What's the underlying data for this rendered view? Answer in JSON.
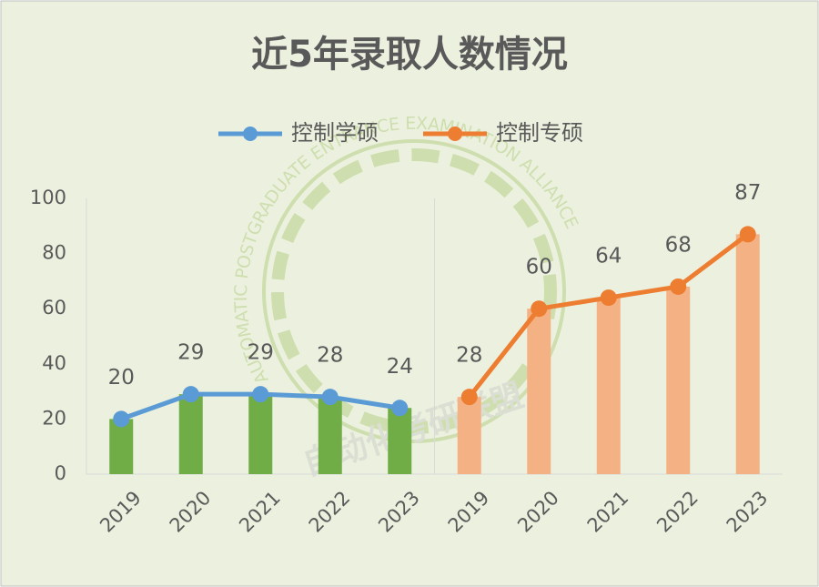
{
  "chart_data": {
    "type": "line",
    "title": "近5年录取人数情况",
    "categories": [
      "2019",
      "2020",
      "2021",
      "2022",
      "2023",
      "2019",
      "2020",
      "2021",
      "2022",
      "2023"
    ],
    "series": [
      {
        "name": "控制学硕",
        "color": "#5b9bd5",
        "bar_color": "#70ad47",
        "values": [
          20,
          29,
          29,
          28,
          24,
          null,
          null,
          null,
          null,
          null
        ]
      },
      {
        "name": "控制专硕",
        "color": "#ed7d31",
        "bar_color": "#f4b183",
        "values": [
          null,
          null,
          null,
          null,
          null,
          28,
          60,
          64,
          68,
          87
        ]
      }
    ],
    "ylim": [
      0,
      100
    ],
    "yticks": [
      0,
      20,
      40,
      60,
      80,
      100
    ],
    "grid": false,
    "legend": "top",
    "watermark": {
      "name": "自动化考研联盟",
      "ring": "AUTOMATIC POSTGRADUATE ENTRANCE EXAMINATION ALLIANCE"
    }
  }
}
